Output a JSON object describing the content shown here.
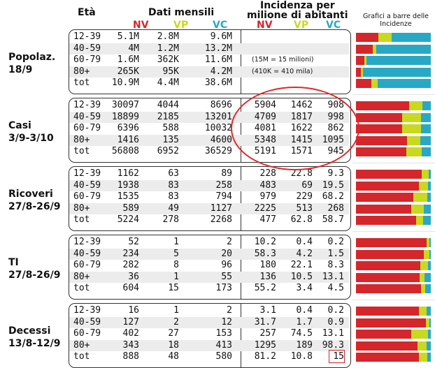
{
  "header": {
    "eta": "Età",
    "dati_mensili": "Dati mensili",
    "incidenza_1": "Incidenza per",
    "incidenza_2": "milione di abitanti",
    "nv": "NV",
    "vp": "VP",
    "vc": "VC",
    "chart_title": "Grafici a barre delle Incidenze"
  },
  "colors": {
    "nv": "#d4262b",
    "vp": "#c8d91e",
    "vc": "#27a9c6"
  },
  "groups": [
    {
      "label": [
        "Popolaz.",
        "18/9"
      ],
      "notes": [
        "(15M = 15 milioni)",
        "(410K = 410 mila)"
      ],
      "rows": [
        {
          "age": "12-39",
          "nv": "5.1M",
          "vp": "2.8M",
          "vc": "9.6M",
          "inv": "",
          "ivp": "",
          "ivc": ""
        },
        {
          "age": "40-59",
          "nv": "4M",
          "vp": "1.2M",
          "vc": "13.2M",
          "inv": "",
          "ivp": "",
          "ivc": ""
        },
        {
          "age": "60-79",
          "nv": "1.6M",
          "vp": "362K",
          "vc": "11.6M",
          "inv": "",
          "ivp": "",
          "ivc": ""
        },
        {
          "age": "80+",
          "nv": "265K",
          "vp": "95K",
          "vc": "4.2M",
          "inv": "",
          "ivp": "",
          "ivc": ""
        },
        {
          "age": "tot",
          "nv": "10.9M",
          "vp": "4.4M",
          "vc": "38.6M",
          "inv": "",
          "ivp": "",
          "ivc": ""
        }
      ],
      "bars": [
        [
          0.3,
          0.18,
          0.52
        ],
        [
          0.22,
          0.05,
          0.73
        ],
        [
          0.11,
          0.03,
          0.86
        ],
        [
          0.07,
          0.02,
          0.91
        ],
        [
          0.21,
          0.08,
          0.71
        ]
      ]
    },
    {
      "label": [
        "Casi",
        "3/9-3/10"
      ],
      "notes": [],
      "rows": [
        {
          "age": "12-39",
          "nv": "30097",
          "vp": "4044",
          "vc": "8696",
          "inv": "5904",
          "ivp": "1462",
          "ivc": "908"
        },
        {
          "age": "40-59",
          "nv": "18899",
          "vp": "2185",
          "vc": "13201",
          "inv": "4709",
          "ivp": "1817",
          "ivc": "998"
        },
        {
          "age": "60-79",
          "nv": "6396",
          "vp": "588",
          "vc": "10032",
          "inv": "4081",
          "ivp": "1622",
          "ivc": "862"
        },
        {
          "age": "80+",
          "nv": "1416",
          "vp": "135",
          "vc": "4600",
          "inv": "5348",
          "ivp": "1415",
          "ivc": "1095"
        },
        {
          "age": "tot",
          "nv": "56808",
          "vp": "6952",
          "vc": "36529",
          "inv": "5191",
          "ivp": "1571",
          "ivc": "945"
        }
      ],
      "bars": [
        [
          0.71,
          0.18,
          0.11
        ],
        [
          0.62,
          0.25,
          0.13
        ],
        [
          0.62,
          0.25,
          0.13
        ],
        [
          0.68,
          0.18,
          0.14
        ],
        [
          0.67,
          0.21,
          0.12
        ]
      ]
    },
    {
      "label": [
        "Ricoveri",
        "27/8-26/9"
      ],
      "notes": [],
      "rows": [
        {
          "age": "12-39",
          "nv": "1162",
          "vp": "63",
          "vc": "89",
          "inv": "228",
          "ivp": "22.8",
          "ivc": "9.3"
        },
        {
          "age": "40-59",
          "nv": "1938",
          "vp": "83",
          "vc": "258",
          "inv": "483",
          "ivp": "69",
          "ivc": "19.5"
        },
        {
          "age": "60-79",
          "nv": "1535",
          "vp": "83",
          "vc": "794",
          "inv": "979",
          "ivp": "229",
          "ivc": "68.2"
        },
        {
          "age": "80+",
          "nv": "589",
          "vp": "49",
          "vc": "1127",
          "inv": "2225",
          "ivp": "513",
          "ivc": "268"
        },
        {
          "age": "tot",
          "nv": "5224",
          "vp": "278",
          "vc": "2268",
          "inv": "477",
          "ivp": "62.8",
          "ivc": "58.7"
        }
      ],
      "bars": [
        [
          0.88,
          0.09,
          0.03
        ],
        [
          0.84,
          0.12,
          0.04
        ],
        [
          0.77,
          0.18,
          0.05
        ],
        [
          0.74,
          0.17,
          0.09
        ],
        [
          0.8,
          0.1,
          0.1
        ]
      ]
    },
    {
      "label": [
        "TI",
        "27/8-26/9"
      ],
      "notes": [],
      "rows": [
        {
          "age": "12-39",
          "nv": "52",
          "vp": "1",
          "vc": "2",
          "inv": "10.2",
          "ivp": "0.4",
          "ivc": "0.2"
        },
        {
          "age": "40-59",
          "nv": "234",
          "vp": "5",
          "vc": "20",
          "inv": "58.3",
          "ivp": "4.2",
          "ivc": "1.5"
        },
        {
          "age": "60-79",
          "nv": "282",
          "vp": "8",
          "vc": "96",
          "inv": "180",
          "ivp": "22.1",
          "ivc": "8.3"
        },
        {
          "age": "80+",
          "nv": "36",
          "vp": "1",
          "vc": "55",
          "inv": "136",
          "ivp": "10.5",
          "ivc": "13.1"
        },
        {
          "age": "tot",
          "nv": "604",
          "vp": "15",
          "vc": "173",
          "inv": "55.2",
          "ivp": "3.4",
          "ivc": "4.5"
        }
      ],
      "bars": [
        [
          0.94,
          0.04,
          0.02
        ],
        [
          0.91,
          0.07,
          0.02
        ],
        [
          0.86,
          0.1,
          0.04
        ],
        [
          0.85,
          0.07,
          0.08
        ],
        [
          0.87,
          0.06,
          0.07
        ]
      ]
    },
    {
      "label": [
        "Decessi",
        "13/8-12/9"
      ],
      "notes": [],
      "rows": [
        {
          "age": "12-39",
          "nv": "16",
          "vp": "1",
          "vc": "2",
          "inv": "3.1",
          "ivp": "0.4",
          "ivc": "0.2"
        },
        {
          "age": "40-59",
          "nv": "127",
          "vp": "2",
          "vc": "12",
          "inv": "31.7",
          "ivp": "1.7",
          "ivc": "0.9"
        },
        {
          "age": "60-79",
          "nv": "402",
          "vp": "27",
          "vc": "153",
          "inv": "257",
          "ivp": "74.5",
          "ivc": "13.1"
        },
        {
          "age": "80+",
          "nv": "343",
          "vp": "18",
          "vc": "413",
          "inv": "1295",
          "ivp": "189",
          "ivc": "98.3"
        },
        {
          "age": "tot",
          "nv": "888",
          "vp": "48",
          "vc": "580",
          "inv": "81.2",
          "ivp": "10.8",
          "ivc": "15"
        }
      ],
      "bars": [
        [
          0.84,
          0.1,
          0.06
        ],
        [
          0.93,
          0.05,
          0.02
        ],
        [
          0.74,
          0.22,
          0.04
        ],
        [
          0.82,
          0.12,
          0.06
        ],
        [
          0.84,
          0.11,
          0.05
        ]
      ]
    }
  ]
}
